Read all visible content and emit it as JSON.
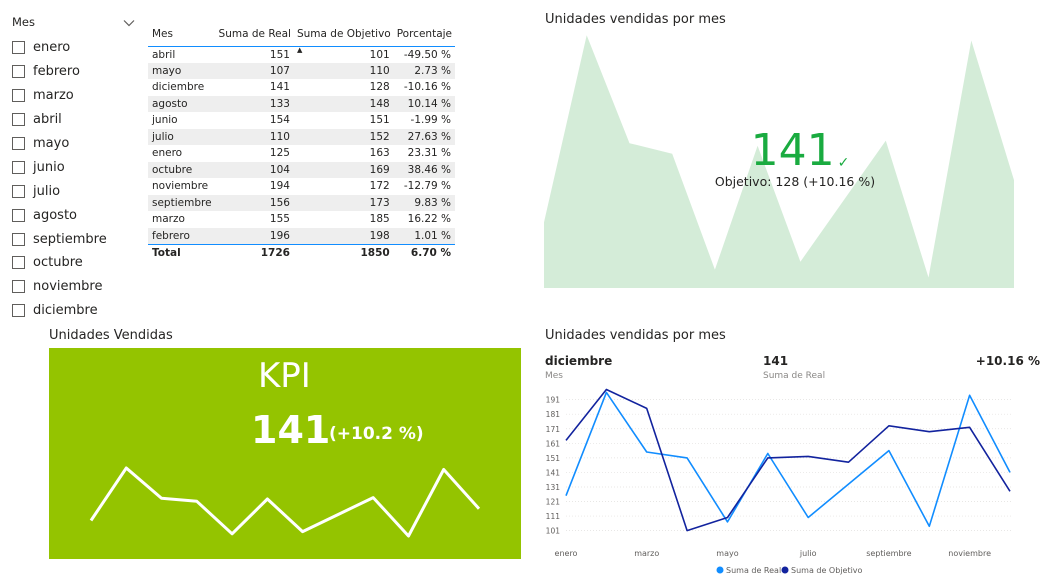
{
  "slicer": {
    "title": "Mes",
    "items": [
      "enero",
      "febrero",
      "marzo",
      "abril",
      "mayo",
      "junio",
      "julio",
      "agosto",
      "septiembre",
      "octubre",
      "noviembre",
      "diciembre"
    ]
  },
  "table": {
    "headers": [
      "Mes",
      "Suma de Real",
      "Suma de Objetivo",
      "Porcentaje"
    ],
    "rows": [
      [
        "abril",
        "151",
        "101",
        "-49.50 %"
      ],
      [
        "mayo",
        "107",
        "110",
        "2.73 %"
      ],
      [
        "diciembre",
        "141",
        "128",
        "-10.16 %"
      ],
      [
        "agosto",
        "133",
        "148",
        "10.14 %"
      ],
      [
        "junio",
        "154",
        "151",
        "-1.99 %"
      ],
      [
        "julio",
        "110",
        "152",
        "27.63 %"
      ],
      [
        "enero",
        "125",
        "163",
        "23.31 %"
      ],
      [
        "octubre",
        "104",
        "169",
        "38.46 %"
      ],
      [
        "noviembre",
        "194",
        "172",
        "-12.79 %"
      ],
      [
        "septiembre",
        "156",
        "173",
        "9.83 %"
      ],
      [
        "marzo",
        "155",
        "185",
        "16.22 %"
      ],
      [
        "febrero",
        "196",
        "198",
        "1.01 %"
      ]
    ],
    "total": [
      "Total",
      "1726",
      "1850",
      "6.70 %"
    ]
  },
  "area_kpi": {
    "title": "Unidades vendidas por mes",
    "value": "141",
    "goal_text": "Objetivo: 128 (+10.16 %)",
    "status_icon": "check-icon",
    "fill_color": "#d4ecd8",
    "value_color": "#1aab40"
  },
  "kpi_card": {
    "title": "Unidades Vendidas",
    "label": "KPI",
    "value": "141",
    "pct": "(+10.2 %)",
    "background": "#94c400"
  },
  "line_chart": {
    "title": "Unidades vendidas por mes",
    "tooltip": {
      "category": "diciembre",
      "category_label": "Mes",
      "value": "141",
      "value_label": "Suma de Real",
      "pct": "+10.16 %"
    },
    "legend": [
      "Suma de Real",
      "Suma de Objetivo"
    ]
  },
  "chart_data": [
    {
      "type": "area",
      "title": "Unidades vendidas por mes",
      "categories": [
        "enero",
        "febrero",
        "marzo",
        "abril",
        "mayo",
        "junio",
        "julio",
        "agosto",
        "septiembre",
        "octubre",
        "noviembre",
        "diciembre"
      ],
      "series": [
        {
          "name": "Suma de Real",
          "values": [
            125,
            196,
            155,
            151,
            107,
            154,
            110,
            133,
            156,
            104,
            194,
            141
          ]
        }
      ],
      "color": "#d4ecd8"
    },
    {
      "type": "line",
      "title": "Unidades vendidas por mes",
      "categories": [
        "enero",
        "febrero",
        "marzo",
        "abril",
        "mayo",
        "junio",
        "julio",
        "agosto",
        "septiembre",
        "octubre",
        "noviembre",
        "diciembre"
      ],
      "x_tick_labels": [
        "enero",
        "marzo",
        "mayo",
        "julio",
        "septiembre",
        "noviembre"
      ],
      "y_ticks": [
        101,
        111,
        121,
        131,
        141,
        151,
        161,
        171,
        181,
        191
      ],
      "ylim": [
        98,
        199
      ],
      "series": [
        {
          "name": "Suma de Real",
          "color": "#118dff",
          "values": [
            125,
            196,
            155,
            151,
            107,
            154,
            110,
            133,
            156,
            104,
            194,
            141
          ]
        },
        {
          "name": "Suma de Objetivo",
          "color": "#12239e",
          "values": [
            163,
            198,
            185,
            101,
            110,
            151,
            152,
            148,
            173,
            169,
            172,
            128
          ]
        }
      ]
    },
    {
      "type": "line",
      "title": "Unidades Vendidas",
      "categories": [
        "enero",
        "febrero",
        "marzo",
        "abril",
        "mayo",
        "junio",
        "julio",
        "agosto",
        "septiembre",
        "octubre",
        "noviembre",
        "diciembre"
      ],
      "series": [
        {
          "name": "Suma de Real",
          "values": [
            125,
            196,
            155,
            151,
            107,
            154,
            110,
            133,
            156,
            104,
            194,
            141
          ]
        }
      ],
      "color": "#ffffff"
    }
  ]
}
